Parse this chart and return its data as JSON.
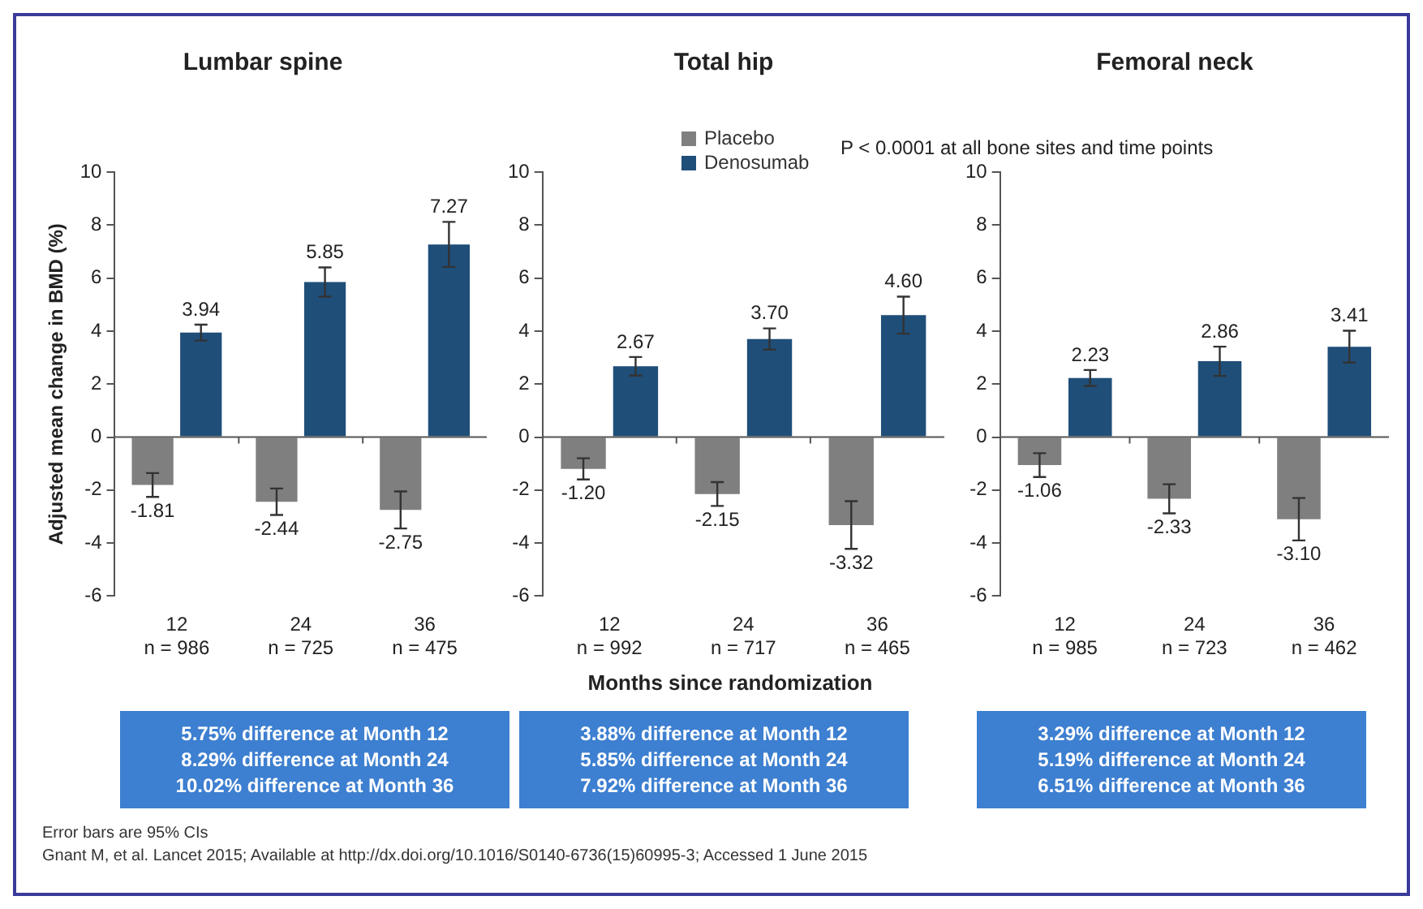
{
  "chart_data": [
    {
      "type": "bar",
      "title": "Lumbar spine",
      "ylabel": "Adjusted mean change in BMD (%)",
      "categories": [
        "12\nn = 986",
        "24\nn = 725",
        "36\nn = 475"
      ],
      "ylim": [
        -6,
        10
      ],
      "yticks": [
        -6,
        -4,
        -2,
        0,
        2,
        4,
        6,
        8,
        10
      ],
      "series": [
        {
          "color": "#7f7f7f",
          "values": [
            -1.81,
            -2.44,
            -2.75
          ],
          "errors": [
            0.45,
            0.5,
            0.7
          ],
          "value_labels": [
            "-1.81",
            "-2.44",
            "-2.75"
          ]
        },
        {
          "color": "#1f4e79",
          "values": [
            3.94,
            5.85,
            7.27
          ],
          "errors": [
            0.3,
            0.55,
            0.85
          ],
          "value_labels": [
            "3.94",
            "5.85",
            "7.27"
          ]
        }
      ],
      "annotations": [
        "5.75% difference at Month 12\n8.29% difference at Month 24\n10.02% difference at Month 36",
        "Error bars are 95% CIs",
        "Gnant M, et al. Lancet 2015; Available at http://dx.doi.org/10.1016/S0140-6736(15)60995-3; Accessed 1 June 2015"
      ]
    },
    {
      "type": "bar",
      "title": "Total hip",
      "xlabel": "Months since randomization",
      "categories": [
        "12\nn = 992",
        "24\nn = 717",
        "36\nn = 465"
      ],
      "ylim": [
        -6,
        10
      ],
      "yticks": [
        -6,
        -4,
        -2,
        0,
        2,
        4,
        6,
        8,
        10
      ],
      "legend": "top left",
      "series": [
        {
          "name": "Placebo",
          "color": "#7f7f7f",
          "values": [
            -1.2,
            -2.15,
            -3.32
          ],
          "errors": [
            0.4,
            0.45,
            0.9
          ],
          "value_labels": [
            "-1.20",
            "-2.15",
            "-3.32"
          ]
        },
        {
          "name": "Denosumab",
          "color": "#1f4e79",
          "values": [
            2.67,
            3.7,
            4.6
          ],
          "errors": [
            0.35,
            0.4,
            0.7
          ],
          "value_labels": [
            "2.67",
            "3.70",
            "4.60"
          ]
        }
      ],
      "annotations": [
        "3.88% difference at Month 12\n5.85% difference at Month 24\n7.92% difference at Month 36",
        "P < 0.0001 at all bone sites and time points"
      ]
    },
    {
      "type": "bar",
      "title": "Femoral neck",
      "categories": [
        "12\nn = 985",
        "24\nn = 723",
        "36\nn = 462"
      ],
      "ylim": [
        -6,
        10
      ],
      "yticks": [
        -6,
        -4,
        -2,
        0,
        2,
        4,
        6,
        8,
        10
      ],
      "series": [
        {
          "color": "#7f7f7f",
          "values": [
            -1.06,
            -2.33,
            -3.1
          ],
          "errors": [
            0.45,
            0.55,
            0.8
          ],
          "value_labels": [
            "-1.06",
            "-2.33",
            "-3.10"
          ]
        },
        {
          "color": "#1f4e79",
          "values": [
            2.23,
            2.86,
            3.41
          ],
          "errors": [
            0.3,
            0.55,
            0.6
          ],
          "value_labels": [
            "2.23",
            "2.86",
            "3.41"
          ]
        }
      ],
      "annotations": [
        "3.29% difference at Month 12\n5.19% difference at Month 24\n6.51% difference at Month 36"
      ]
    }
  ]
}
